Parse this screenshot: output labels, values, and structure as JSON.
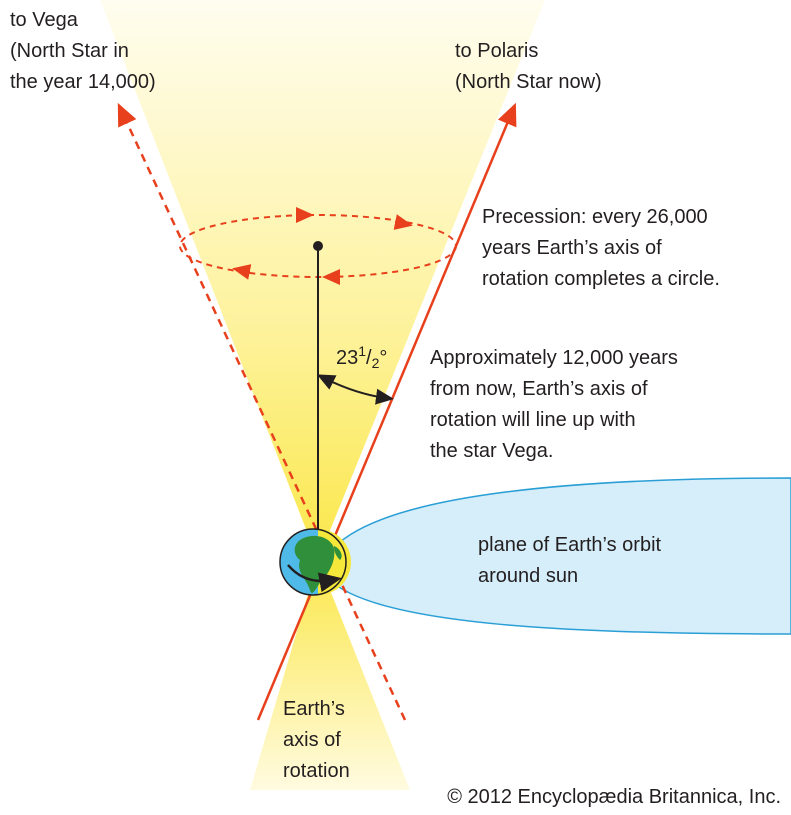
{
  "labels": {
    "vega": [
      "to Vega",
      "(North Star in",
      "the year 14,000)"
    ],
    "polaris": [
      "to Polaris",
      "(North Star now)"
    ],
    "precession": [
      "Precession: every 26,000",
      "years Earth’s axis of",
      "rotation completes a circle."
    ],
    "angle": {
      "whole": "23",
      "numerator": "1",
      "slash": "/",
      "denominator": "2",
      "unit": "°"
    },
    "future": [
      "Approximately 12,000 years",
      "from now, Earth’s axis of",
      "rotation will line up with",
      "the star Vega."
    ],
    "orbit": [
      "plane of Earth’s orbit",
      "around sun"
    ],
    "axis": [
      "Earth’s",
      "axis of",
      "rotation"
    ],
    "copyright": "© 2012 Encyclopædia Britannica, Inc."
  }
}
